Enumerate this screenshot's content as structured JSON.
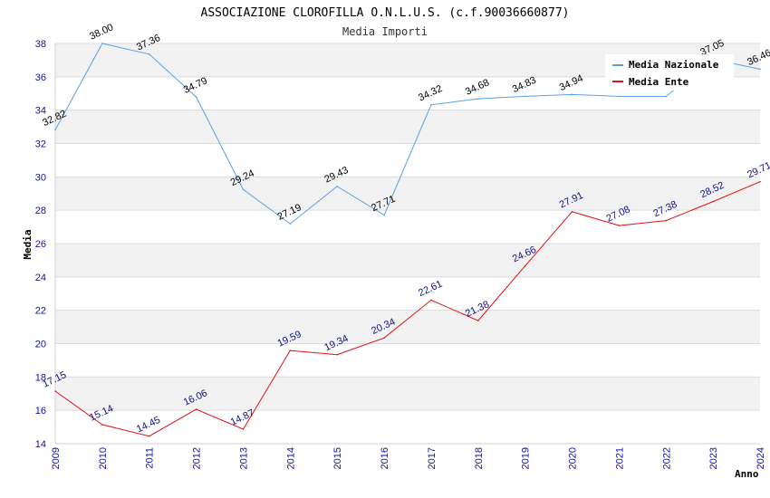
{
  "chart_data": {
    "type": "line",
    "title": "ASSOCIAZIONE CLOROFILLA O.N.L.U.S. (c.f.90036660877)",
    "subtitle": "Media Importi",
    "xlabel": "Anno",
    "ylabel": "Media",
    "ylim": [
      14,
      38
    ],
    "y_ticks": [
      "14",
      "16",
      "18",
      "20",
      "22",
      "24",
      "26",
      "28",
      "30",
      "32",
      "34",
      "36",
      "38"
    ],
    "x": [
      "2009",
      "2010",
      "2011",
      "2012",
      "2013",
      "2014",
      "2015",
      "2016",
      "2017",
      "2018",
      "2019",
      "2020",
      "2021",
      "2022",
      "2023",
      "2024"
    ],
    "legend_position": "top-right",
    "series": [
      {
        "name": "Media Nazionale",
        "color": "#5aa0e6",
        "values": [
          32.82,
          38.0,
          37.36,
          34.79,
          29.24,
          27.19,
          29.43,
          27.71,
          34.32,
          34.68,
          34.83,
          34.94,
          34.83,
          34.83,
          37.05,
          36.46
        ],
        "labels": [
          "32.82",
          "38.00",
          "37.36",
          "34.79",
          "29.24",
          "27.19",
          "29.43",
          "27.71",
          "34.32",
          "34.68",
          "34.83",
          "34.94",
          "",
          "",
          "37.05",
          "36.46"
        ]
      },
      {
        "name": "Media Ente",
        "color": "#e01010",
        "values": [
          17.15,
          15.14,
          14.45,
          16.06,
          14.87,
          19.59,
          19.34,
          20.34,
          22.61,
          21.38,
          24.66,
          27.91,
          27.08,
          27.38,
          28.52,
          29.71
        ],
        "labels": [
          "17.15",
          "15.14",
          "14.45",
          "16.06",
          "14.87",
          "19.59",
          "19.34",
          "20.34",
          "22.61",
          "21.38",
          "24.66",
          "27.91",
          "27.08",
          "27.38",
          "28.52",
          "29.71"
        ]
      }
    ]
  }
}
